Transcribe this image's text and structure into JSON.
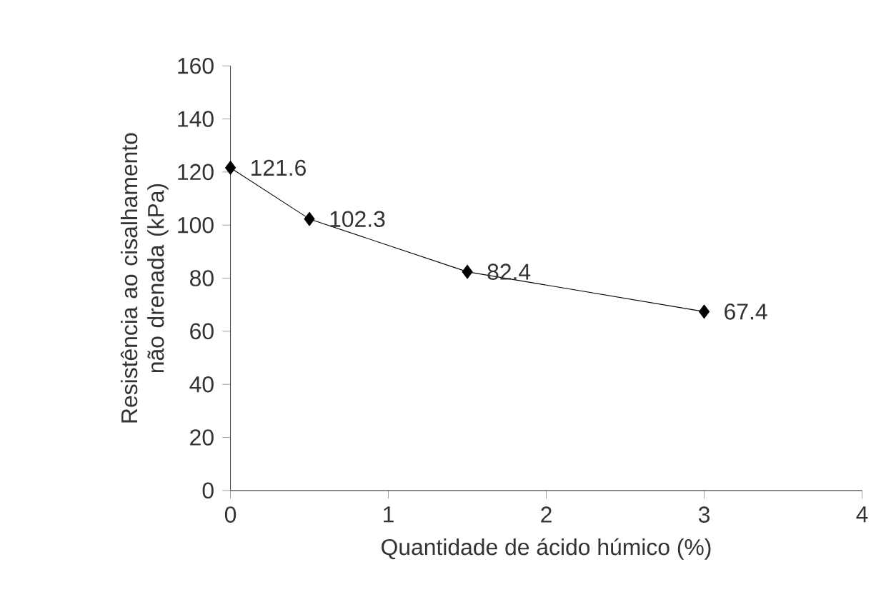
{
  "chart_data": {
    "type": "line",
    "xlabel": "Quantidade de ácido húmico (%)",
    "ylabel": "Resistência ao cisalhamento não drenada (kPa)",
    "x": [
      0,
      0.5,
      1.5,
      3
    ],
    "series": [
      {
        "color": "#000000",
        "values": [
          121.6,
          102.3,
          82.4,
          67.4
        ]
      }
    ],
    "xlim": [
      0,
      4
    ],
    "xticks": [
      0,
      1,
      2,
      3,
      4
    ],
    "ylim": [
      0,
      160
    ],
    "yticks": [
      0,
      20,
      40,
      60,
      80,
      100,
      120,
      140,
      160
    ],
    "data_labels": true,
    "grid": false,
    "marker": "diamond",
    "line_style": "solid"
  }
}
